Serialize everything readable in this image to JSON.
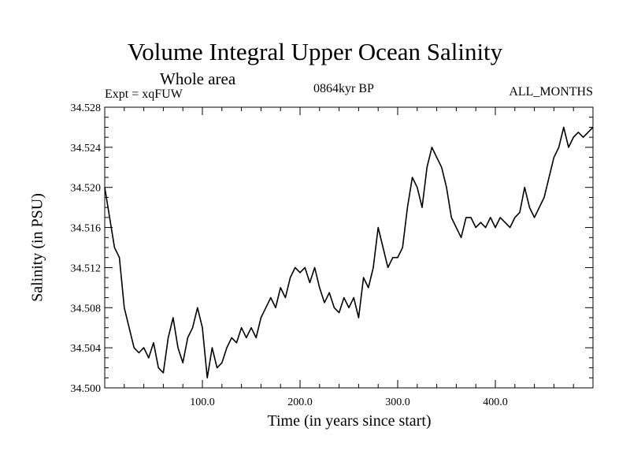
{
  "header": {
    "title": "Volume Integral Upper Ocean Salinity",
    "subtitle": "Whole area",
    "expt": "Expt = xqFUW",
    "period": "0864kyr BP",
    "months": "ALL_MONTHS"
  },
  "chart_data": {
    "type": "line",
    "title": "Volume Integral Upper Ocean Salinity",
    "xlabel": "Time (in years since start)",
    "ylabel": "Salinity (in PSU)",
    "xlim": [
      0,
      500
    ],
    "ylim": [
      34.5,
      34.528
    ],
    "x_ticks": [
      100,
      200,
      300,
      400
    ],
    "x_tick_labels": [
      "100.0",
      "200.0",
      "300.0",
      "400.0"
    ],
    "y_ticks": [
      34.5,
      34.504,
      34.508,
      34.512,
      34.516,
      34.52,
      34.524,
      34.528
    ],
    "y_tick_labels": [
      "34.500",
      "34.504",
      "34.508",
      "34.512",
      "34.516",
      "34.520",
      "34.524",
      "34.528"
    ],
    "grid": false,
    "series": [
      {
        "name": "Volume Integral Upper Ocean Salinity",
        "color": "#000000",
        "x": [
          0,
          5,
          10,
          15,
          20,
          25,
          30,
          35,
          40,
          45,
          50,
          55,
          60,
          65,
          70,
          75,
          80,
          85,
          90,
          95,
          100,
          105,
          110,
          115,
          120,
          125,
          130,
          135,
          140,
          145,
          150,
          155,
          160,
          165,
          170,
          175,
          180,
          185,
          190,
          195,
          200,
          205,
          210,
          215,
          220,
          225,
          230,
          235,
          240,
          245,
          250,
          255,
          260,
          265,
          270,
          275,
          280,
          285,
          290,
          295,
          300,
          305,
          310,
          315,
          320,
          325,
          330,
          335,
          340,
          345,
          350,
          355,
          360,
          365,
          370,
          375,
          380,
          385,
          390,
          395,
          400,
          405,
          410,
          415,
          420,
          425,
          430,
          435,
          440,
          445,
          450,
          455,
          460,
          465,
          470,
          475,
          480,
          485,
          490,
          495,
          500
        ],
        "y": [
          34.52,
          34.517,
          34.514,
          34.513,
          34.508,
          34.506,
          34.504,
          34.5035,
          34.504,
          34.503,
          34.5045,
          34.502,
          34.5015,
          34.505,
          34.507,
          34.504,
          34.5025,
          34.505,
          34.506,
          34.508,
          34.506,
          34.501,
          34.504,
          34.502,
          34.5025,
          34.504,
          34.505,
          34.5045,
          34.506,
          34.505,
          34.506,
          34.505,
          34.507,
          34.508,
          34.509,
          34.508,
          34.51,
          34.509,
          34.511,
          34.512,
          34.5115,
          34.512,
          34.5105,
          34.512,
          34.51,
          34.5085,
          34.5095,
          34.508,
          34.5075,
          34.509,
          34.508,
          34.509,
          34.507,
          34.511,
          34.51,
          34.512,
          34.516,
          34.514,
          34.512,
          34.513,
          34.513,
          34.514,
          34.518,
          34.521,
          34.52,
          34.518,
          34.522,
          34.524,
          34.523,
          34.522,
          34.52,
          34.517,
          34.516,
          34.515,
          34.517,
          34.517,
          34.516,
          34.5165,
          34.516,
          34.517,
          34.516,
          34.517,
          34.5165,
          34.516,
          34.517,
          34.5175,
          34.52,
          34.518,
          34.517,
          34.518,
          34.519,
          34.521,
          34.523,
          34.524,
          34.526,
          34.524,
          34.525,
          34.5255,
          34.525,
          34.5255,
          34.526
        ]
      }
    ]
  }
}
